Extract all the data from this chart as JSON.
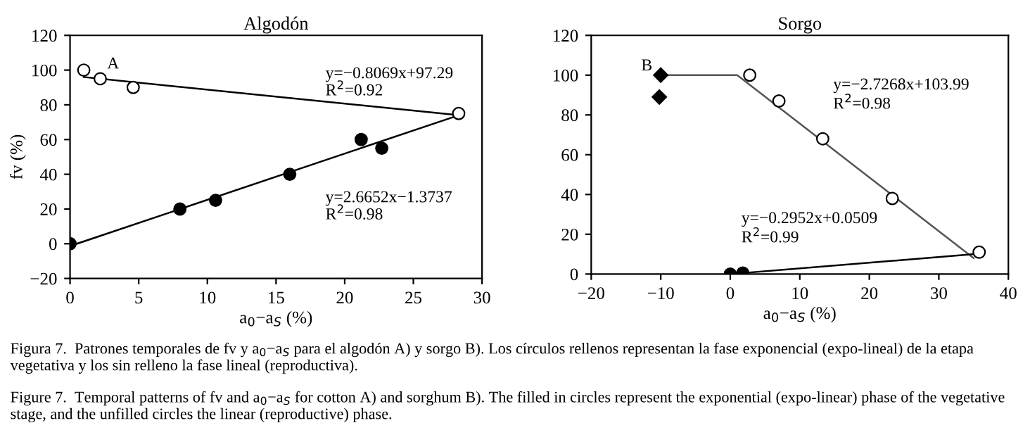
{
  "chart_data": [
    {
      "type": "scatter",
      "title": "Algodón",
      "xlabel": "a$_{0}$−a$_{S}$ (%)",
      "ylabel": "fv (%)",
      "xlim": [
        0,
        30
      ],
      "xticks": [
        0,
        5,
        10,
        15,
        20,
        25,
        30
      ],
      "ylim": [
        -20,
        120
      ],
      "yticks": [
        -20,
        0,
        20,
        40,
        60,
        80,
        100,
        120
      ],
      "grid": false,
      "legend": false,
      "series": [
        {
          "marker": "circle",
          "color": "#ffffff",
          "x": [
            1,
            2.2,
            4.6,
            28.3
          ],
          "values": [
            100,
            95,
            90,
            75
          ]
        },
        {
          "marker": "circle",
          "color": "#000000",
          "x": [
            0,
            8,
            10.6,
            16,
            21.2,
            22.7
          ],
          "values": [
            0,
            20,
            25,
            40,
            60,
            55
          ]
        },
        {
          "type": "line",
          "color": "#000000",
          "x": [
            1,
            28.3
          ],
          "values": [
            96,
            74
          ]
        },
        {
          "type": "line",
          "color": "#000000",
          "x": [
            0.5,
            28.3
          ],
          "values": [
            0,
            74
          ]
        }
      ],
      "annotations": [
        "A",
        "y=−0.8069x+97.29",
        "R$^{2}$=0.92",
        "y=2.6652x−1.3737",
        "R$^{2}$=0.98",
        "Figura 7.  Patrones temporales de fv y a$_{0}$−a$_{S}$ para el algodón A) y sorgo B). Los círculos rellenos representan la fase exponencial (expo-lineal) de la etapa vegetativa y los sin relleno la fase lineal (reproductiva).",
        "Figure 7.  Temporal patterns of fv and a$_{0}$−a$_{S}$ for cotton A) and sorghum B). The filled in circles represent the exponential (expo-linear) phase of the vegetative stage, and the unfilled circles the linear (reproductive) phase."
      ]
    },
    {
      "type": "scatter",
      "title": "Sorgo",
      "xlabel": "a$_{0}$−a$_{S}$ (%)",
      "xlim": [
        -20,
        40
      ],
      "xticks": [
        -20,
        -10,
        0,
        10,
        20,
        30,
        40
      ],
      "ylim": [
        0,
        120
      ],
      "yticks": [
        0,
        20,
        40,
        60,
        80,
        100,
        120
      ],
      "grid": false,
      "legend": false,
      "series": [
        {
          "type": "line",
          "color": "#555555",
          "x": [
            -10,
            1,
            35
          ],
          "values": [
            100,
            100,
            8
          ]
        },
        {
          "type": "line",
          "color": "#000000",
          "x": [
            1.8,
            35
          ],
          "values": [
            0.5,
            10
          ]
        },
        {
          "marker": "diamond",
          "color": "#000000",
          "x": [
            -10,
            -10.2
          ],
          "values": [
            100,
            89
          ]
        },
        {
          "marker": "circle",
          "color": "#000000",
          "x": [
            0,
            1.8
          ],
          "values": [
            0,
            0.5
          ]
        },
        {
          "marker": "circle",
          "color": "#ffffff",
          "x": [
            2.8,
            7,
            13.3,
            23.3,
            35.8
          ],
          "values": [
            100,
            87,
            68,
            38,
            11
          ]
        }
      ],
      "annotations": [
        "B",
        "y=−2.7268x+103.99",
        "R$^{2}$=0.98",
        "y=−0.2952x+0.0509",
        "R$^{2}$=0.99"
      ]
    }
  ]
}
